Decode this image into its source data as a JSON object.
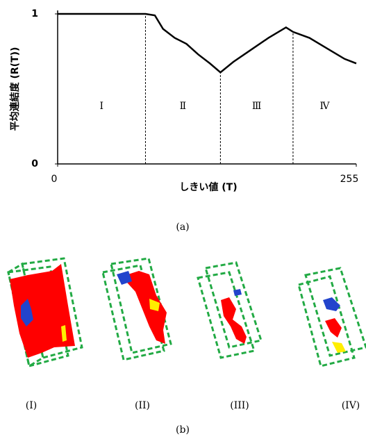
{
  "chart_data": {
    "type": "line",
    "x_label": "しきい値 (T)",
    "y_label": "平均連結度 (R(T))",
    "x": [
      0,
      75,
      83,
      90,
      100,
      110,
      120,
      130,
      139,
      150,
      165,
      180,
      195,
      201,
      215,
      230,
      245,
      255
    ],
    "series": [
      {
        "color": "#000000",
        "values": [
          1,
          1,
          0.99,
          0.9,
          0.84,
          0.8,
          0.73,
          0.67,
          0.61,
          0.68,
          0.76,
          0.84,
          0.91,
          0.88,
          0.84,
          0.77,
          0.7,
          0.67
        ]
      }
    ],
    "dividers": [
      75,
      139,
      201
    ],
    "regions": [
      "Ⅰ",
      "Ⅱ",
      "Ⅲ",
      "Ⅳ"
    ],
    "xlim": [
      0,
      255
    ],
    "ylim": [
      0,
      1
    ],
    "xticks": [
      0,
      255
    ],
    "yticks": [
      0,
      1
    ]
  },
  "caption_a": "(a)",
  "caption_b": "(b)",
  "panels": [
    "(I)",
    "(II)",
    "(III)",
    "(IV)"
  ]
}
